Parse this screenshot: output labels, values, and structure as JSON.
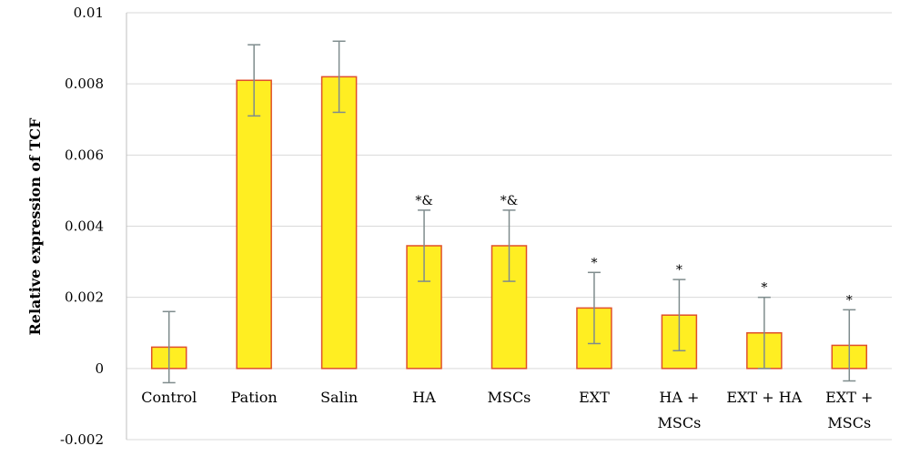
{
  "chart_data": {
    "type": "bar",
    "title": "",
    "xlabel": "",
    "ylabel": "Relative expression of TCF",
    "ylim": [
      -0.002,
      0.01
    ],
    "yticks": [
      -0.002,
      0,
      0.002,
      0.004,
      0.006,
      0.008,
      0.01
    ],
    "ytick_labels": [
      "-0.002",
      "0",
      "0.002",
      "0.004",
      "0.006",
      "0.008",
      "0.01"
    ],
    "grid": true,
    "legend": "none",
    "colors": {
      "bar_fill": "#ffee22",
      "bar_edge": "#e0502a",
      "error_bar": "#7f8c8d",
      "grid": "#d9d9d9"
    },
    "categories": [
      [
        "Control"
      ],
      [
        "Pation"
      ],
      [
        "Salin"
      ],
      [
        "HA"
      ],
      [
        "MSCs"
      ],
      [
        "EXT"
      ],
      [
        "HA +",
        "MSCs"
      ],
      [
        "EXT + HA"
      ],
      [
        "EXT +",
        "MSCs"
      ]
    ],
    "values": [
      0.0006,
      0.0081,
      0.0082,
      0.00345,
      0.00345,
      0.0017,
      0.0015,
      0.001,
      0.00065
    ],
    "errors": [
      0.001,
      0.001,
      0.001,
      0.001,
      0.001,
      0.001,
      0.001,
      0.001,
      0.001
    ],
    "annotations": [
      "",
      "",
      "",
      "*&",
      "*&",
      "*",
      "*",
      "*",
      "*"
    ]
  }
}
